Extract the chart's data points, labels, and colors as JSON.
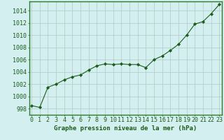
{
  "hours": [
    0,
    1,
    2,
    3,
    4,
    5,
    6,
    7,
    8,
    9,
    10,
    11,
    12,
    13,
    14,
    15,
    16,
    17,
    18,
    19,
    20,
    21,
    22,
    23
  ],
  "pressure": [
    998.5,
    998.2,
    1001.5,
    1002.0,
    1002.7,
    1003.2,
    1003.5,
    1004.3,
    1005.0,
    1005.3,
    1005.2,
    1005.3,
    1005.2,
    1005.2,
    1004.7,
    1006.0,
    1006.6,
    1007.5,
    1008.5,
    1010.0,
    1011.8,
    1012.2,
    1013.5,
    1015.0
  ],
  "line_color": "#1a5c1a",
  "marker_color": "#1a5c1a",
  "bg_color": "#d4efef",
  "grid_color": "#b0c8c8",
  "xlabel": "Graphe pression niveau de la mer (hPa)",
  "ylabel_ticks": [
    998,
    1000,
    1002,
    1004,
    1006,
    1008,
    1010,
    1012,
    1014
  ],
  "ylim": [
    997.0,
    1015.5
  ],
  "xlim": [
    -0.3,
    23.3
  ],
  "xlabel_fontsize": 6.5,
  "tick_fontsize": 6.0,
  "xlabel_color": "#1a5c1a",
  "tick_color": "#1a5c1a",
  "border_color": "#2d7a2d"
}
